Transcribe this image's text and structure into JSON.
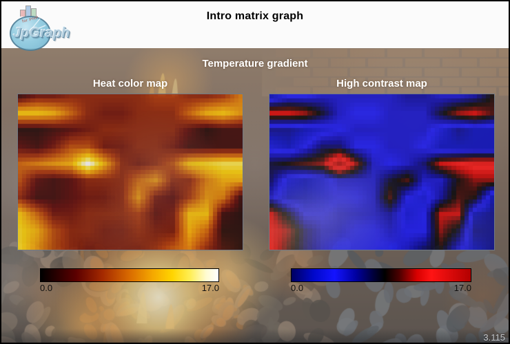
{
  "banner": {
    "title": "Intro matrix graph",
    "background_color": "#fbfbfb",
    "logo": {
      "name": "JpGraph",
      "tagline": "for PHP",
      "ellipse_color": "#8ecadf",
      "text_color": "#aecbdc"
    }
  },
  "chart": {
    "supertitle": "Temperature gradient",
    "panels": [
      {
        "title": "Heat color map",
        "colormap": "heat",
        "legend_min": "0.0",
        "legend_max": "17.0"
      },
      {
        "title": "High contrast map",
        "colormap": "contrast",
        "legend_min": "0.0",
        "legend_max": "17.0"
      }
    ]
  },
  "footer": {
    "version": "3.115"
  },
  "background": {
    "description": "muted photo of glowing coals and flames behind the plots",
    "base_top": "#8d7460",
    "base_mid": "#6b564a",
    "base_bottom": "#443c37",
    "brick": "#aa8258",
    "fire_core": "#fff8d7",
    "fire_glow": "#f0a040",
    "smoke": "#aaa7a4",
    "footer_band": "#24262b"
  },
  "chart_data": {
    "type": "heatmap",
    "title": "Temperature gradient",
    "panels": [
      "Heat color map",
      "High contrast map"
    ],
    "shared_matrix": true,
    "value_min": 0,
    "value_max": 17,
    "legend_ticks": [
      0.0,
      17.0
    ],
    "interpolation": "bilinear, factor 4, blocky cells",
    "plot_opacity": 0.8,
    "matrix": [
      [
        2,
        4,
        4,
        5,
        5,
        5,
        5,
        5,
        6,
        6,
        5,
        5,
        6,
        9
      ],
      [
        12,
        12,
        11,
        8,
        5,
        4,
        4,
        5,
        5,
        5,
        8,
        11,
        12,
        10
      ],
      [
        1,
        1,
        2,
        3,
        4,
        5,
        5,
        5,
        5,
        5,
        3,
        1,
        2,
        2
      ],
      [
        3,
        2,
        4,
        7,
        7,
        4,
        4,
        5,
        5,
        4,
        2,
        2,
        2,
        2
      ],
      [
        8,
        9,
        10,
        11,
        17,
        11,
        5,
        4,
        5,
        7,
        12,
        13,
        14,
        14
      ],
      [
        7,
        3,
        2,
        3,
        5,
        5,
        5,
        8,
        10,
        5,
        5,
        9,
        11,
        11
      ],
      [
        5,
        2,
        2,
        3,
        4,
        4,
        5,
        10,
        4,
        3,
        6,
        10,
        9,
        2
      ],
      [
        12,
        8,
        4,
        4,
        5,
        5,
        5,
        6,
        3,
        4,
        12,
        12,
        2,
        1
      ],
      [
        13,
        11,
        7,
        5,
        5,
        4,
        4,
        5,
        4,
        4,
        11,
        8,
        1,
        1
      ],
      [
        13,
        10,
        7,
        5,
        4,
        4,
        4,
        4,
        5,
        7,
        9,
        5,
        2,
        1
      ]
    ],
    "colormaps": {
      "heat": [
        [
          0.0,
          "#000000"
        ],
        [
          0.2,
          "#5c0000"
        ],
        [
          0.35,
          "#a52a00"
        ],
        [
          0.5,
          "#d96b00"
        ],
        [
          0.63,
          "#f5a800"
        ],
        [
          0.74,
          "#ffd400"
        ],
        [
          0.84,
          "#ffee55"
        ],
        [
          0.93,
          "#fffbd0"
        ],
        [
          1.0,
          "#ffffff"
        ]
      ],
      "contrast": [
        [
          0.0,
          "#000060"
        ],
        [
          0.12,
          "#0008c8"
        ],
        [
          0.24,
          "#1414ff"
        ],
        [
          0.36,
          "#0000a0"
        ],
        [
          0.46,
          "#000038"
        ],
        [
          0.52,
          "#000000"
        ],
        [
          0.6,
          "#4a0000"
        ],
        [
          0.7,
          "#d80000"
        ],
        [
          0.78,
          "#ff1414"
        ],
        [
          1.0,
          "#b20000"
        ]
      ]
    }
  }
}
